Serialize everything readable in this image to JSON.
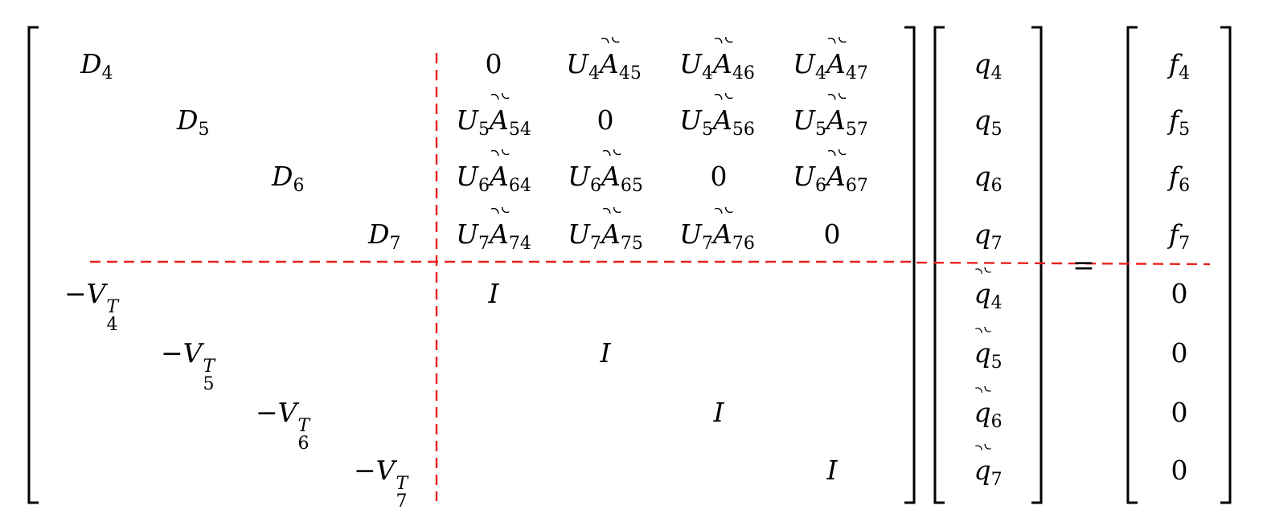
{
  "equation": {
    "left_matrix": [
      {
        "row": 1,
        "diag": {
          "sym": "D",
          "sub": "4"
        },
        "right_block": [
          "0",
          "U4A45",
          "U4A46",
          "U4A47"
        ]
      },
      {
        "row": 2,
        "diag": {
          "sym": "D",
          "sub": "5"
        },
        "right_block": [
          "U5A54",
          "0",
          "U5A56",
          "U5A57"
        ]
      },
      {
        "row": 3,
        "diag": {
          "sym": "D",
          "sub": "6"
        },
        "right_block": [
          "U6A64",
          "U6A65",
          "0",
          "U6A67"
        ]
      },
      {
        "row": 4,
        "diag": {
          "sym": "D",
          "sub": "7"
        },
        "right_block": [
          "U7A74",
          "U7A75",
          "U7A76",
          "0"
        ]
      },
      {
        "row": 5,
        "diag": {
          "sym": "−V",
          "sub": "4",
          "sup": "T"
        },
        "identity": "I"
      },
      {
        "row": 6,
        "diag": {
          "sym": "−V",
          "sub": "5",
          "sup": "T"
        },
        "identity": "I"
      },
      {
        "row": 7,
        "diag": {
          "sym": "−V",
          "sub": "6",
          "sup": "T"
        },
        "identity": "I"
      },
      {
        "row": 8,
        "diag": {
          "sym": "−V",
          "sub": "7",
          "sup": "T"
        },
        "identity": "I"
      }
    ],
    "labels": {
      "D4": "D",
      "D4s": "4",
      "D5": "D",
      "D5s": "5",
      "D6": "D",
      "D6s": "6",
      "D7": "D",
      "D7s": "7",
      "V": "−V",
      "T": "T",
      "v4": "4",
      "v5": "5",
      "v6": "6",
      "v7": "7",
      "U": "U",
      "A": "A",
      "I": "I",
      "zero": "0",
      "eq": "=",
      "u4": "4",
      "u5": "5",
      "u6": "6",
      "u7": "7",
      "a45": "45",
      "a46": "46",
      "a47": "47",
      "a54": "54",
      "a56": "56",
      "a57": "57",
      "a64": "64",
      "a65": "65",
      "a67": "67",
      "a74": "74",
      "a75": "75",
      "a76": "76",
      "q": "q",
      "f": "f",
      "n4": "4",
      "n5": "5",
      "n6": "6",
      "n7": "7"
    },
    "unknowns": [
      "q4",
      "q5",
      "q6",
      "q7",
      "q̃4",
      "q̃5",
      "q̃6",
      "q̃7"
    ],
    "rhs": [
      "f4",
      "f5",
      "f6",
      "f7",
      "0",
      "0",
      "0",
      "0"
    ],
    "colors": {
      "ink": "#000000",
      "partition": "#e8231f"
    }
  }
}
